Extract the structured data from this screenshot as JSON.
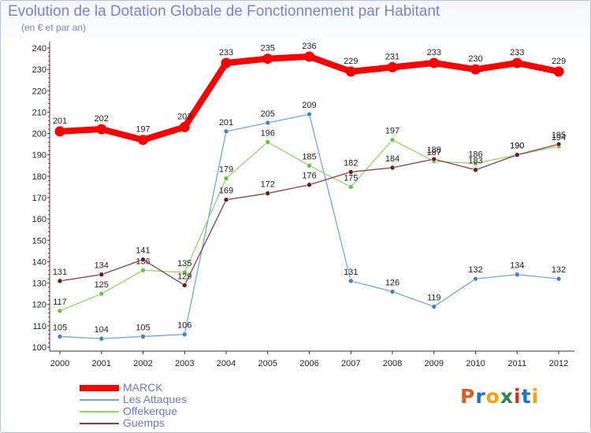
{
  "title": "Evolution de la Dotation Globale de Fonctionnement par Habitant",
  "subtitle": "(en € et par an)",
  "logo": {
    "text": "Proxiti",
    "colors": [
      "#e05a1c",
      "#1e73be",
      "#f5a300",
      "#2b8a3e",
      "#d6301f",
      "#1e73be",
      "#f5a300"
    ]
  },
  "chart_data": {
    "type": "line",
    "title": "Evolution de la Dotation Globale de Fonctionnement par Habitant",
    "subtitle": "(en € et par an)",
    "xlabel": "",
    "ylabel": "",
    "ylim": [
      100,
      240
    ],
    "ystep": 10,
    "grid": false,
    "legend_position": "bottom-left",
    "categories": [
      "2000",
      "2001",
      "2002",
      "2003",
      "2004",
      "2005",
      "2006",
      "2007",
      "2008",
      "2009",
      "2010",
      "2011",
      "2012"
    ],
    "series": [
      {
        "name": "MARCK",
        "color": "#ff0000",
        "point_color": "#ff0000",
        "style": "thick",
        "values": [
          201,
          202,
          197,
          203,
          233,
          235,
          236,
          229,
          231,
          233,
          230,
          233,
          229
        ]
      },
      {
        "name": "Les Attaques",
        "color": "#6fa8dc",
        "point_color": "#3d85c6",
        "style": "thin",
        "values": [
          105,
          104,
          105,
          106,
          201,
          205,
          209,
          131,
          126,
          119,
          132,
          134,
          132
        ]
      },
      {
        "name": "Offekerque",
        "color": "#93d667",
        "point_color": "#6ac43a",
        "style": "thin",
        "values": [
          117,
          125,
          136,
          135,
          179,
          196,
          185,
          175,
          197,
          187,
          186,
          190,
          194
        ]
      },
      {
        "name": "Guemps",
        "color": "#8b4040",
        "point_color": "#6b1a1a",
        "style": "thin",
        "values": [
          131,
          134,
          141,
          129,
          169,
          172,
          176,
          182,
          184,
          188,
          183,
          190,
          195
        ]
      }
    ]
  }
}
